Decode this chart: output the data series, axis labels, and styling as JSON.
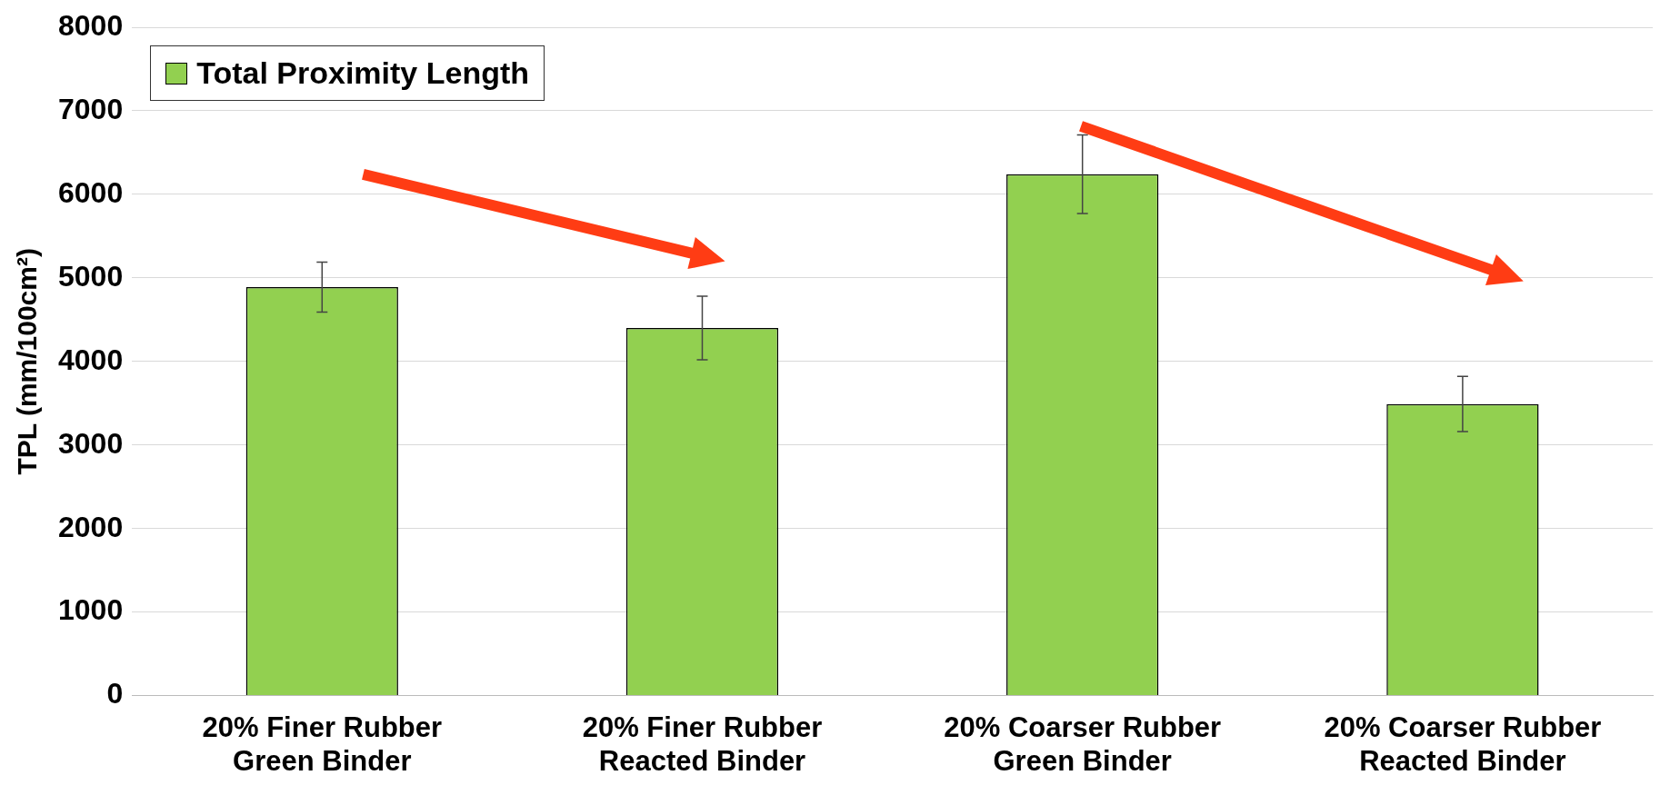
{
  "chart_data": {
    "type": "bar",
    "ylabel": "TPL (mm/100cm²)",
    "categories": [
      "20% Finer Rubber\nGreen Binder",
      "20% Finer Rubber\nReacted Binder",
      "20% Coarser Rubber\nGreen Binder",
      "20% Coarser Rubber\nReacted Binder"
    ],
    "series": [
      {
        "name": "Total Proximity Length",
        "color": "#92d050",
        "values": [
          4890,
          4400,
          6240,
          3490
        ],
        "errors": [
          300,
          380,
          470,
          330
        ]
      }
    ],
    "ylim": [
      0,
      8000
    ],
    "yticks": [
      0,
      1000,
      2000,
      3000,
      4000,
      5000,
      6000,
      7000,
      8000
    ],
    "grid": "y",
    "legend": "top left"
  }
}
